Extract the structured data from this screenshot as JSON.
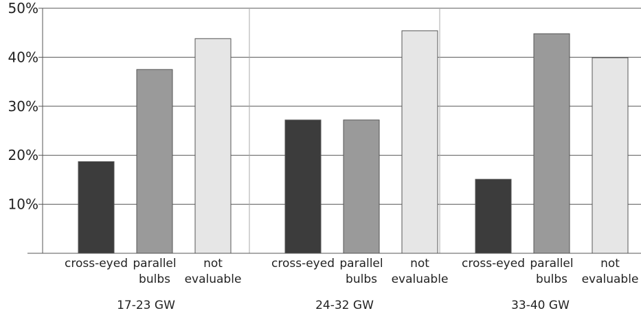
{
  "chart_data": {
    "type": "bar",
    "title": "",
    "xlabel": "",
    "ylabel": "",
    "ylim": [
      0,
      50
    ],
    "y_ticks": [
      "10%",
      "20%",
      "30%",
      "40%",
      "50%"
    ],
    "y_tick_values": [
      10,
      20,
      30,
      40,
      50
    ],
    "grid": true,
    "legend": "none",
    "groups": [
      {
        "label": "17-23 GW",
        "bars": [
          {
            "label_lines": [
              "cross-eyed"
            ],
            "value": 18.7,
            "color": "#3c3c3c"
          },
          {
            "label_lines": [
              "parallel",
              "bulbs"
            ],
            "value": 37.5,
            "color": "#9a9a9a"
          },
          {
            "label_lines": [
              "not",
              "evaluable"
            ],
            "value": 43.8,
            "color": "#e6e6e6"
          }
        ]
      },
      {
        "label": "24-32 GW",
        "bars": [
          {
            "label_lines": [
              "cross-eyed"
            ],
            "value": 27.2,
            "color": "#3c3c3c"
          },
          {
            "label_lines": [
              "parallel",
              "bulbs"
            ],
            "value": 27.2,
            "color": "#9a9a9a"
          },
          {
            "label_lines": [
              "not",
              "evaluable"
            ],
            "value": 45.4,
            "color": "#e6e6e6"
          }
        ]
      },
      {
        "label": "33-40 GW",
        "bars": [
          {
            "label_lines": [
              "cross-eyed"
            ],
            "value": 15.1,
            "color": "#3c3c3c"
          },
          {
            "label_lines": [
              "parallel",
              "bulbs"
            ],
            "value": 44.8,
            "color": "#9a9a9a"
          },
          {
            "label_lines": [
              "not",
              "evaluable"
            ],
            "value": 39.9,
            "color": "#e6e6e6"
          }
        ]
      }
    ]
  }
}
